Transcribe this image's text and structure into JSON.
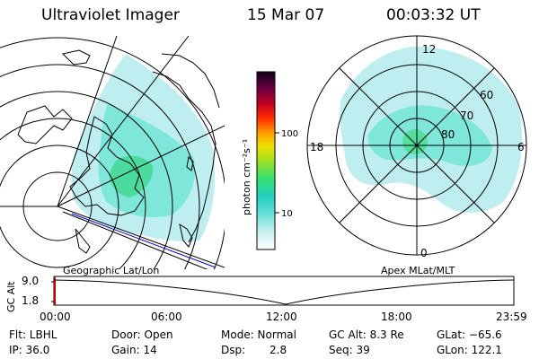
{
  "header": {
    "instrument": "Ultraviolet Imager",
    "date": "15 Mar 07",
    "time": "00:03:32 UT"
  },
  "colorbar": {
    "unit": "photon cm⁻²s⁻¹",
    "ticks": [
      "100",
      "10"
    ]
  },
  "left_map": {
    "label": "Geographic Lat/Lon"
  },
  "right_map": {
    "label": "Apex MLat/MLT",
    "mlt_labels": [
      "12",
      "18",
      "6",
      "0"
    ],
    "lat_labels": [
      "60",
      "70",
      "80"
    ]
  },
  "timeline": {
    "axis_label": "GC Alt",
    "y_ticks": [
      "9.0",
      "1.8"
    ],
    "x_ticks": [
      "00:00",
      "06:00",
      "12:00",
      "18:00",
      "23:59"
    ]
  },
  "footer": {
    "filter": "Flt: LBHL",
    "ip": "IP: 36.0",
    "door": "Door: Open",
    "gain": "Gain: 14",
    "mode": "Mode: Normal",
    "dsp_label": "Dsp:",
    "dsp_value": "2.8",
    "gc_alt": "GC Alt: 8.3 Re",
    "seq": "Seq: 39",
    "glat": "GLat: −65.6",
    "glon": "GLon: 122.1"
  }
}
